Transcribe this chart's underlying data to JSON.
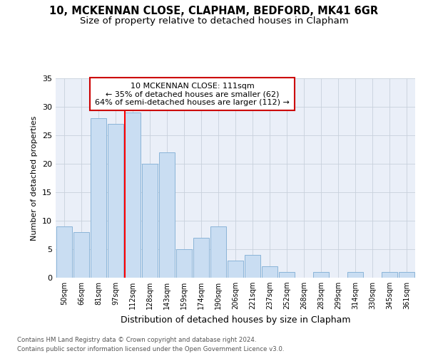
{
  "title1": "10, MCKENNAN CLOSE, CLAPHAM, BEDFORD, MK41 6GR",
  "title2": "Size of property relative to detached houses in Clapham",
  "xlabel": "Distribution of detached houses by size in Clapham",
  "ylabel": "Number of detached properties",
  "footer1": "Contains HM Land Registry data © Crown copyright and database right 2024.",
  "footer2": "Contains public sector information licensed under the Open Government Licence v3.0.",
  "annotation_line1": "10 MCKENNAN CLOSE: 111sqm",
  "annotation_line2": "← 35% of detached houses are smaller (62)",
  "annotation_line3": "64% of semi-detached houses are larger (112) →",
  "bar_labels": [
    "50sqm",
    "66sqm",
    "81sqm",
    "97sqm",
    "112sqm",
    "128sqm",
    "143sqm",
    "159sqm",
    "174sqm",
    "190sqm",
    "206sqm",
    "221sqm",
    "237sqm",
    "252sqm",
    "268sqm",
    "283sqm",
    "299sqm",
    "314sqm",
    "330sqm",
    "345sqm",
    "361sqm"
  ],
  "bar_values": [
    9,
    8,
    28,
    27,
    29,
    20,
    22,
    5,
    7,
    9,
    3,
    4,
    2,
    1,
    0,
    1,
    0,
    1,
    0,
    1,
    1
  ],
  "bar_color": "#c9ddf2",
  "bar_edge_color": "#8ab4d8",
  "red_line_index": 4,
  "ylim": [
    0,
    35
  ],
  "yticks": [
    0,
    5,
    10,
    15,
    20,
    25,
    30,
    35
  ],
  "bg_color": "#ffffff",
  "plot_bg_color": "#eaeff8",
  "title1_fontsize": 10.5,
  "title2_fontsize": 9.5,
  "xlabel_fontsize": 9,
  "ylabel_fontsize": 8,
  "annotation_box_color": "#ffffff",
  "annotation_box_edge": "#cc0000",
  "annotation_fontsize": 8
}
